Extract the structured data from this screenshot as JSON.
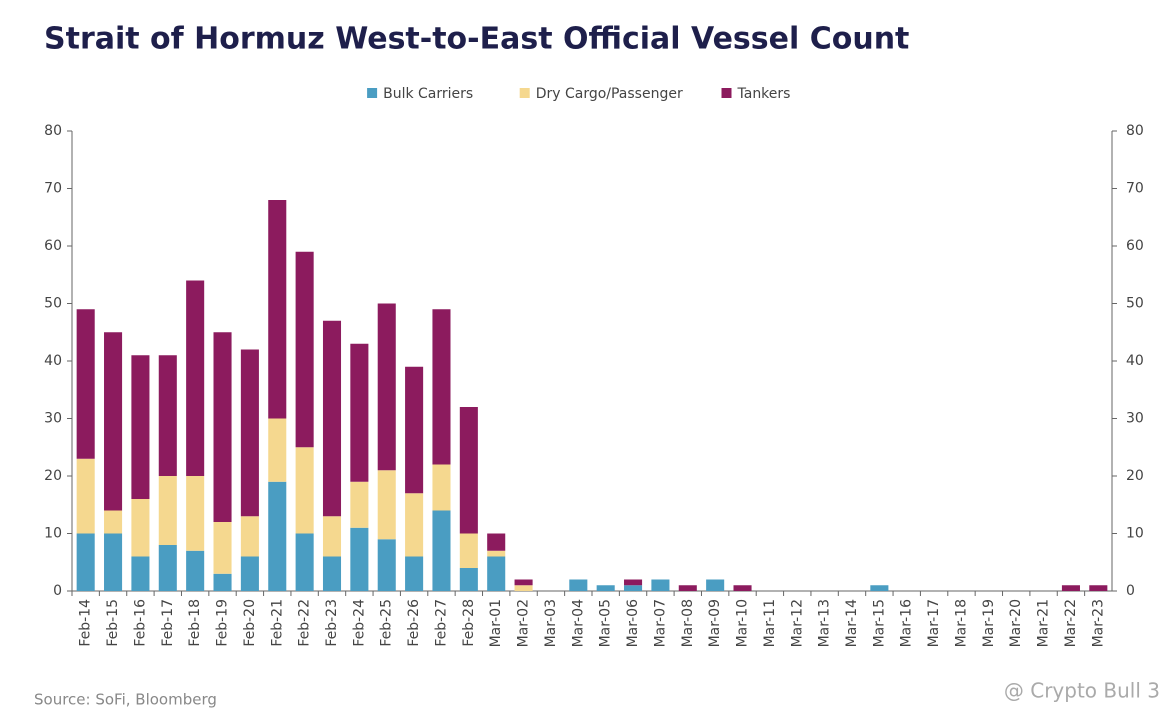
{
  "chart_data": {
    "type": "stacked_bar",
    "title": "Strait of Hormuz West-to-East Official Vessel Count",
    "source": "Source: SoFi, Bloomberg",
    "watermark": "@ Crypto Bull 3",
    "categories": [
      "Feb-14",
      "Feb-15",
      "Feb-16",
      "Feb-17",
      "Feb-18",
      "Feb-19",
      "Feb-20",
      "Feb-21",
      "Feb-22",
      "Feb-23",
      "Feb-24",
      "Feb-25",
      "Feb-26",
      "Feb-27",
      "Feb-28",
      "Mar-01",
      "Mar-02",
      "Mar-03",
      "Mar-04",
      "Mar-05",
      "Mar-06",
      "Mar-07",
      "Mar-08",
      "Mar-09",
      "Mar-10",
      "Mar-11",
      "Mar-12",
      "Mar-13",
      "Mar-14",
      "Mar-15",
      "Mar-16",
      "Mar-17",
      "Mar-18",
      "Mar-19",
      "Mar-20",
      "Mar-21",
      "Mar-22",
      "Mar-23"
    ],
    "series": [
      {
        "name": "Bulk Carriers",
        "color": "#4a9dc2",
        "values": [
          10,
          10,
          6,
          8,
          7,
          3,
          6,
          19,
          10,
          6,
          11,
          9,
          6,
          14,
          4,
          6,
          0,
          0,
          2,
          1,
          1,
          2,
          0,
          2,
          0,
          0,
          0,
          0,
          0,
          1,
          0,
          0,
          0,
          0,
          0,
          0,
          0,
          0
        ]
      },
      {
        "name": "Dry Cargo/Passenger",
        "color": "#f5d88f",
        "values": [
          13,
          4,
          10,
          12,
          13,
          9,
          7,
          11,
          15,
          7,
          8,
          12,
          11,
          8,
          6,
          1,
          1,
          0,
          0,
          0,
          0,
          0,
          0,
          0,
          0,
          0,
          0,
          0,
          0,
          0,
          0,
          0,
          0,
          0,
          0,
          0,
          0,
          0
        ]
      },
      {
        "name": "Tankers",
        "color": "#8c1b5e",
        "values": [
          26,
          31,
          25,
          21,
          34,
          33,
          29,
          38,
          34,
          34,
          24,
          29,
          22,
          27,
          22,
          3,
          1,
          0,
          0,
          0,
          1,
          0,
          1,
          0,
          1,
          0,
          0,
          0,
          0,
          0,
          0,
          0,
          0,
          0,
          0,
          0,
          1,
          1
        ]
      }
    ],
    "ylim": [
      0,
      80
    ],
    "yticks": [
      0,
      10,
      20,
      30,
      40,
      50,
      60,
      70,
      80
    ],
    "y2lim": [
      0,
      80
    ],
    "y2ticks": [
      0,
      10,
      20,
      30,
      40,
      50,
      60,
      70,
      80
    ],
    "legend": "top"
  }
}
